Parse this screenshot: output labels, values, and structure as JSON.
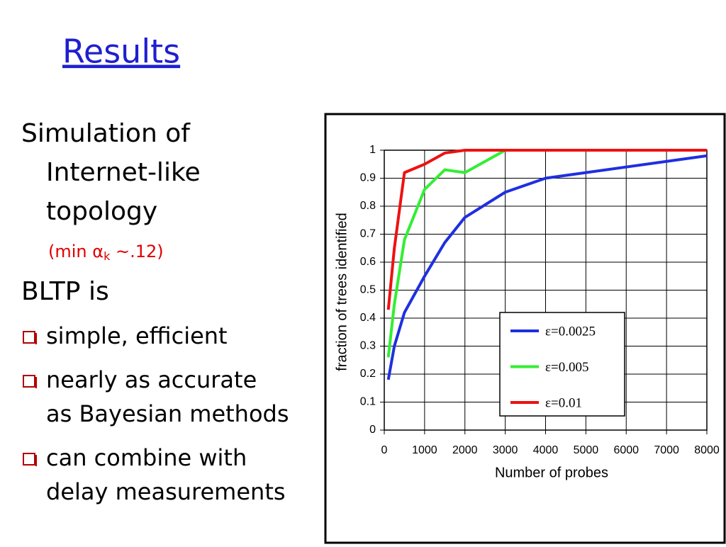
{
  "title": "Results",
  "body": {
    "intro": {
      "lines": [
        "Simulation of",
        "Internet-like",
        "topology"
      ],
      "note": {
        "prefix": "(min α",
        "subscript": "k",
        "suffix": " ~.12)"
      }
    },
    "heading": "BLTP is",
    "bullets": [
      {
        "lines": [
          "simple, efficient"
        ]
      },
      {
        "lines": [
          "nearly as accurate",
          "as Bayesian methods"
        ]
      },
      {
        "lines": [
          "can combine with",
          "delay measurements"
        ]
      }
    ]
  },
  "chart_data": {
    "type": "line",
    "xlabel": "Number of probes",
    "ylabel": "fraction of trees identified",
    "x": [
      100,
      250,
      500,
      1000,
      1500,
      2000,
      3000,
      4000,
      8000
    ],
    "series": [
      {
        "name": "ε=0.0025",
        "color": "#1f2fe0",
        "values": [
          0.18,
          0.3,
          0.42,
          0.55,
          0.67,
          0.76,
          0.85,
          0.9,
          0.98
        ]
      },
      {
        "name": "ε=0.005",
        "color": "#33ee33",
        "values": [
          0.26,
          0.45,
          0.68,
          0.86,
          0.93,
          0.92,
          1,
          1,
          1
        ]
      },
      {
        "name": "ε=0.01",
        "color": "#ee1111",
        "values": [
          0.43,
          0.65,
          0.92,
          0.95,
          0.99,
          1,
          1,
          1,
          1
        ]
      }
    ],
    "xlim": [
      0,
      8000
    ],
    "xticks": [
      0,
      1000,
      2000,
      3000,
      4000,
      5000,
      6000,
      7000,
      8000
    ],
    "ylim": [
      0,
      1
    ],
    "yticks": [
      0,
      0.1,
      0.2,
      0.3,
      0.4,
      0.5,
      0.6,
      0.7,
      0.8,
      0.9,
      1
    ],
    "grid": true,
    "legend": "lower right"
  }
}
